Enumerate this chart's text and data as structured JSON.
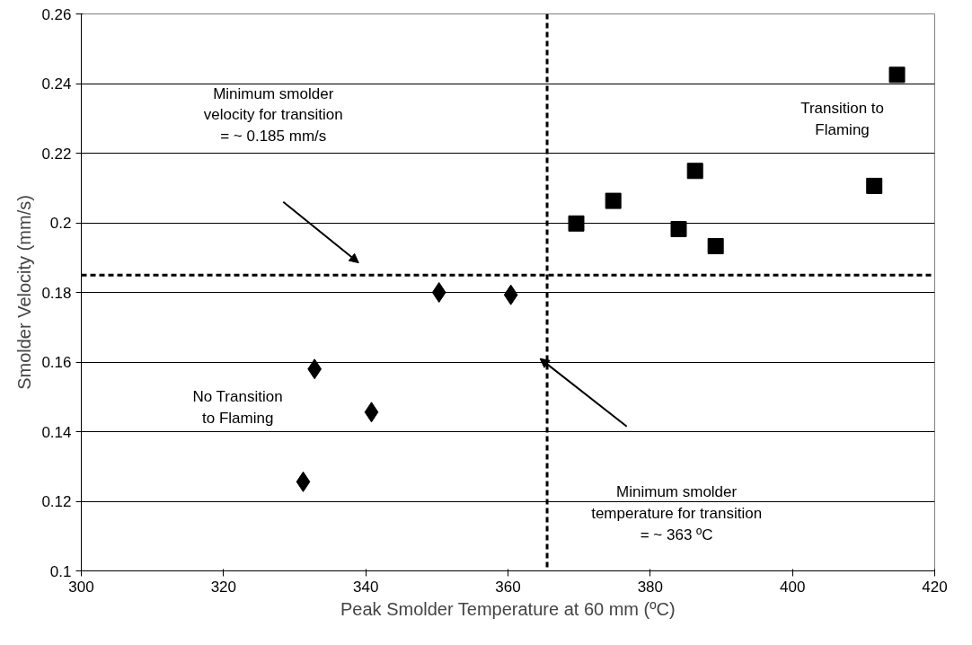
{
  "chart_data": {
    "type": "scatter",
    "xlabel": "Peak Smolder Temperature at 60 mm (ºC)",
    "ylabel": "Smolder Velocity (mm/s)",
    "xlim": [
      300,
      420
    ],
    "xticks": [
      300,
      320,
      340,
      360,
      380,
      400,
      420
    ],
    "ylim": [
      0.1,
      0.26
    ],
    "yticks": [
      0.1,
      0.12,
      0.14,
      0.16,
      0.18,
      0.2,
      0.22,
      0.24,
      0.26
    ],
    "grid": "y",
    "series": [
      {
        "color": "#000000",
        "marker": "diamond",
        "x": [
          331.2,
          332.8,
          340.8,
          350.3,
          360.4
        ],
        "values": [
          0.1256,
          0.158,
          0.1456,
          0.18,
          0.1793
        ]
      },
      {
        "color": "#000000",
        "marker": "square",
        "x": [
          369.6,
          374.8,
          384,
          386.3,
          389.2,
          411.5,
          414.7
        ],
        "values": [
          0.1998,
          0.2063,
          0.1982,
          0.2149,
          0.1933,
          0.2106,
          0.2425
        ]
      }
    ],
    "ref_lines": [
      {
        "axis": "y",
        "value": 0.185,
        "color": "#000000",
        "line_style": "dashed"
      },
      {
        "axis": "x",
        "value": 365.5,
        "color": "#000000",
        "line_style": "dashed"
      }
    ],
    "annotations": [
      "Minimum smolder\nvelocity for transition\n= ~ 0.185 mm/s",
      "Minimum smolder\ntemperature for transition\n= ~ 363 ºC",
      "Transition to\nFlaming",
      "No Transition\nto Flaming"
    ]
  }
}
